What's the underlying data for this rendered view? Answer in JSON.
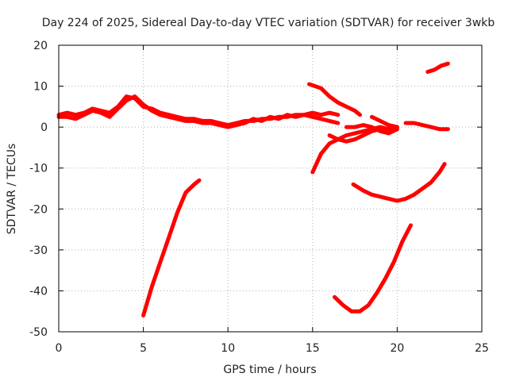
{
  "chart_data": {
    "type": "line",
    "title": "Day 224 of 2025, Sidereal Day-to-day VTEC variation (SDTVAR) for receiver 3wkb",
    "xlabel": "GPS time / hours",
    "ylabel": "SDTVAR / TECUs",
    "xlim": [
      0,
      25
    ],
    "ylim": [
      -50,
      20
    ],
    "xticks": [
      0,
      5,
      10,
      15,
      20,
      25
    ],
    "yticks": [
      -50,
      -40,
      -30,
      -20,
      -10,
      0,
      10,
      20
    ],
    "grid": true,
    "color": "#ff0000",
    "series": [
      {
        "x": [
          0,
          0.5,
          1,
          1.5,
          2,
          2.5,
          3,
          3.5,
          4,
          4.5,
          5,
          5.5,
          6,
          6.5,
          7,
          7.5,
          8,
          8.5,
          9,
          9.5,
          10,
          10.5,
          11,
          11.5,
          12,
          12.5,
          13,
          13.5,
          14,
          14.5,
          15,
          15.5,
          16,
          16.5
        ],
        "y": [
          3,
          3.5,
          3,
          3.5,
          4.5,
          4,
          3.5,
          5,
          7.5,
          7,
          5,
          4.5,
          3.5,
          3,
          2.5,
          2,
          2,
          1.5,
          1.5,
          1,
          0.5,
          1,
          1.5,
          1.5,
          2,
          2,
          2.5,
          2.5,
          3,
          3,
          2.5,
          2,
          1.5,
          1
        ]
      },
      {
        "x": [
          0,
          0.5,
          1,
          1.5,
          2,
          2.5,
          3,
          3.5,
          4,
          4.5,
          5,
          5.5,
          6,
          6.5,
          7,
          7.5,
          8,
          8.5,
          9,
          9.5,
          10,
          10.5,
          11,
          11.5,
          12,
          12.5,
          13,
          13.5,
          14,
          14.5,
          15,
          15.5,
          16,
          16.5
        ],
        "y": [
          2.5,
          2.5,
          2,
          3,
          4,
          3.5,
          2.5,
          4.5,
          6.5,
          7.5,
          5.5,
          4,
          3,
          2.5,
          2,
          1.5,
          1.5,
          1,
          1,
          0.5,
          0,
          0.5,
          1,
          2,
          1.5,
          2.5,
          2,
          3,
          2.5,
          3,
          3.5,
          3,
          3.5,
          3
        ]
      },
      {
        "x": [
          5,
          5.5,
          6,
          6.5,
          7,
          7.5,
          8,
          8.3
        ],
        "y": [
          -46,
          -39,
          -33,
          -27,
          -21,
          -16,
          -14,
          -13
        ]
      },
      {
        "x": [
          14.8,
          15.5,
          16,
          16.5,
          17,
          17.5,
          17.8
        ],
        "y": [
          10.5,
          9.5,
          7.5,
          6,
          5,
          4,
          3
        ]
      },
      {
        "x": [
          15,
          15.5,
          16,
          16.5,
          17,
          17.5,
          18,
          18.5,
          19,
          19.5,
          20
        ],
        "y": [
          -11,
          -6.5,
          -4,
          -3,
          -2,
          -1.5,
          -1,
          -0.5,
          0,
          -0.5,
          -0.5
        ]
      },
      {
        "x": [
          16,
          16.5,
          17,
          17.5,
          18,
          18.5,
          19,
          19.5,
          20
        ],
        "y": [
          -2,
          -3,
          -3.5,
          -3,
          -2,
          -1,
          -0.5,
          -0.5,
          0
        ]
      },
      {
        "x": [
          17,
          17.5,
          18,
          18.5,
          19,
          19.5,
          20
        ],
        "y": [
          0,
          0,
          0.5,
          0,
          -1,
          -1.5,
          -0.5
        ]
      },
      {
        "x": [
          18.5,
          19,
          19.5,
          20
        ],
        "y": [
          2.5,
          1.5,
          0.5,
          0
        ]
      },
      {
        "x": [
          20.5,
          21,
          21.5,
          22,
          22.5,
          23
        ],
        "y": [
          1,
          1,
          0.5,
          0,
          -0.5,
          -0.5
        ]
      },
      {
        "x": [
          17.4,
          18,
          18.5,
          19,
          19.5,
          20,
          20.5,
          21,
          21.5,
          22,
          22.5,
          22.8
        ],
        "y": [
          -14,
          -15.5,
          -16.5,
          -17,
          -17.5,
          -18,
          -17.5,
          -16.5,
          -15,
          -13.5,
          -11,
          -9
        ]
      },
      {
        "x": [
          16.3,
          16.8,
          17.3,
          17.8,
          18.3,
          18.8,
          19.3,
          19.8,
          20.3,
          20.8
        ],
        "y": [
          -41.5,
          -43.5,
          -45,
          -45,
          -43.5,
          -40.5,
          -37,
          -33,
          -28,
          -24
        ]
      },
      {
        "x": [
          21.8,
          22.2,
          22.6,
          23
        ],
        "y": [
          13.5,
          14,
          15,
          15.5
        ]
      }
    ]
  }
}
